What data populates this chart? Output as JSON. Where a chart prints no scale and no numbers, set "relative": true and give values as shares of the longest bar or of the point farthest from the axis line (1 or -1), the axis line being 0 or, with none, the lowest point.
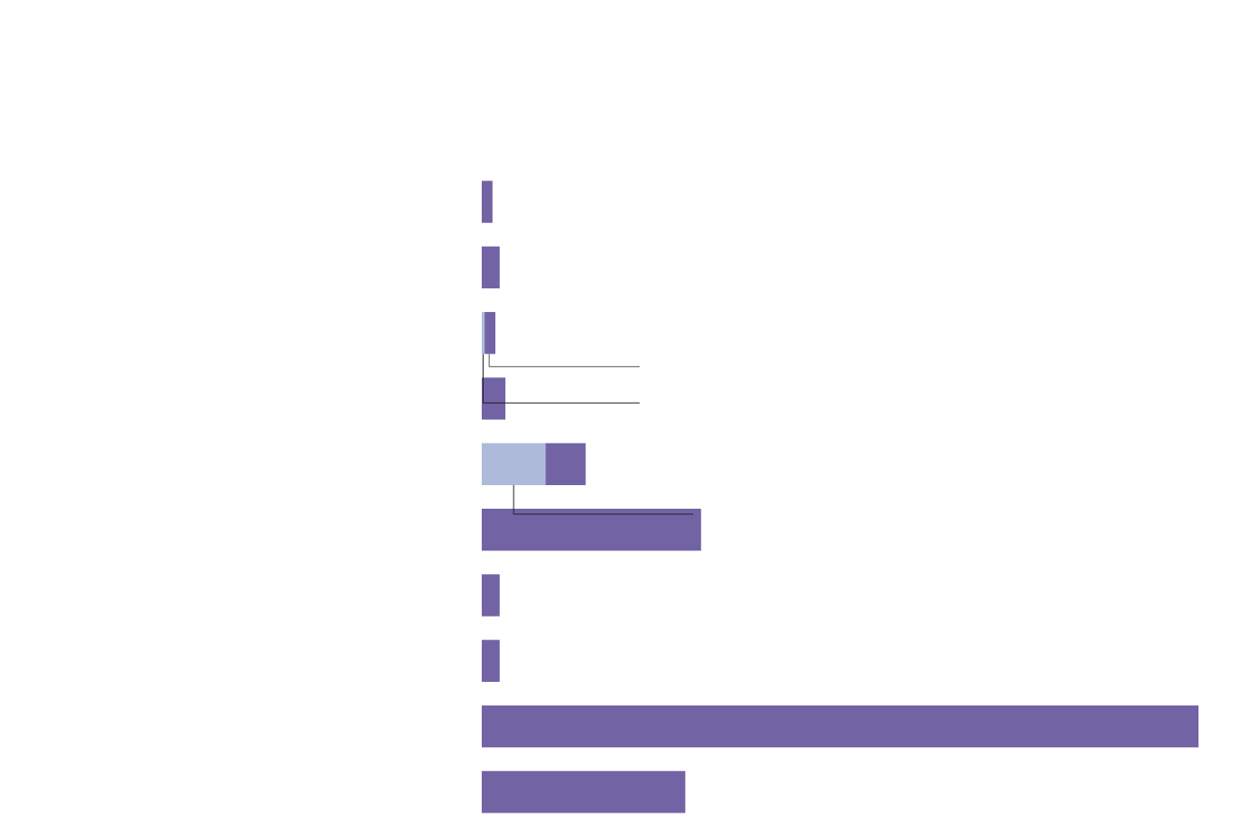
{
  "chart_data": {
    "type": "bar",
    "orientation": "horizontal",
    "stacked": true,
    "relative": true,
    "categories": [
      null,
      null,
      null,
      null,
      null,
      null,
      null,
      null,
      null,
      null
    ],
    "series": [
      {
        "color": "#adbad9",
        "values": [
          null,
          null,
          0.004,
          null,
          0.089,
          null,
          null,
          null,
          null,
          null
        ]
      },
      {
        "color": "#7263a4",
        "values": [
          0.015,
          0.025,
          0.015,
          0.033,
          0.056,
          0.306,
          0.025,
          0.025,
          1.0,
          0.284
        ]
      }
    ]
  }
}
